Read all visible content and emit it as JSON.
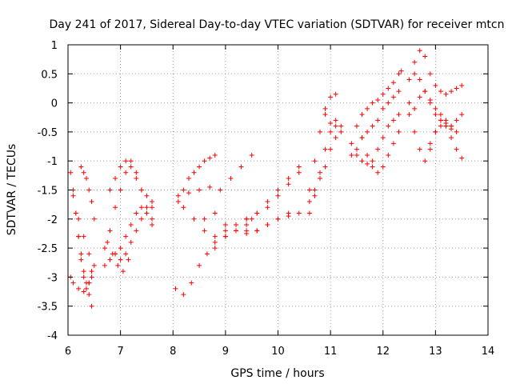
{
  "chart_data": {
    "type": "scatter",
    "title": "Day 241 of 2017, Sidereal Day-to-day VTEC variation (SDTVAR) for receiver mtcn",
    "xlabel": "GPS time / hours",
    "ylabel": "SDTVAR / TECUs",
    "xlim": [
      6,
      14
    ],
    "ylim": [
      -4,
      1
    ],
    "xticks": [
      "6",
      "7",
      "8",
      "9",
      "10",
      "11",
      "12",
      "13",
      "14"
    ],
    "yticks": [
      "-4",
      "-3.5",
      "-3",
      "-2.5",
      "-2",
      "-1.5",
      "-1",
      "-0.5",
      "0",
      "0.5",
      "1"
    ],
    "grid": true,
    "marker": "+",
    "color": "#ff0000",
    "series": [
      {
        "name": "s1",
        "x": [
          6.05,
          6.1,
          6.15,
          6.2,
          6.25,
          6.3,
          6.35,
          6.4,
          6.45
        ],
        "y": [
          -1.2,
          -1.6,
          -1.9,
          -2.3,
          -2.6,
          -2.9,
          -3.1,
          -3.3,
          -3.5
        ]
      },
      {
        "name": "s2",
        "x": [
          6.1,
          6.15,
          6.2,
          6.25,
          6.3,
          6.35,
          6.4,
          6.45
        ],
        "y": [
          -1.5,
          -1.9,
          -2.3,
          -2.7,
          -3.0,
          -3.2,
          -3.1,
          -2.9
        ]
      },
      {
        "name": "s3",
        "x": [
          6.25,
          6.3,
          6.35,
          6.4,
          6.45,
          6.5
        ],
        "y": [
          -1.1,
          -1.2,
          -1.3,
          -1.5,
          -1.7,
          -2.0
        ]
      },
      {
        "name": "s4",
        "x": [
          6.05,
          6.1,
          6.2,
          6.3,
          6.4,
          6.45
        ],
        "y": [
          -3.0,
          -3.1,
          -3.2,
          -3.25,
          -3.1,
          -3.0
        ]
      },
      {
        "name": "s5",
        "x": [
          6.2,
          6.3,
          6.4,
          6.5
        ],
        "y": [
          -2.0,
          -2.3,
          -2.6,
          -2.8
        ]
      },
      {
        "name": "s6",
        "x": [
          6.7,
          6.8,
          6.9,
          7.0,
          7.1,
          7.2,
          7.3,
          7.4,
          7.5,
          7.6
        ],
        "y": [
          -2.5,
          -2.2,
          -1.8,
          -1.5,
          -1.2,
          -1.0,
          -1.2,
          -1.5,
          -1.8,
          -2.0
        ]
      },
      {
        "name": "s7",
        "x": [
          6.7,
          6.8,
          6.9,
          7.0,
          7.1,
          7.2,
          7.3,
          7.4,
          7.5,
          7.6
        ],
        "y": [
          -2.8,
          -2.7,
          -2.6,
          -2.5,
          -2.3,
          -2.1,
          -1.9,
          -1.8,
          -1.9,
          -2.1
        ]
      },
      {
        "name": "s8",
        "x": [
          6.8,
          6.9,
          7.0,
          7.1,
          7.2,
          7.3,
          7.4,
          7.5,
          7.6
        ],
        "y": [
          -1.5,
          -1.3,
          -1.1,
          -1.0,
          -1.1,
          -1.3,
          -1.5,
          -1.6,
          -1.7
        ]
      },
      {
        "name": "s9",
        "x": [
          6.9,
          7.0,
          7.1,
          7.2,
          7.3,
          7.4,
          7.5,
          7.6
        ],
        "y": [
          -2.6,
          -2.7,
          -2.6,
          -2.4,
          -2.2,
          -2.0,
          -1.9,
          -1.8
        ]
      },
      {
        "name": "s10",
        "x": [
          6.75,
          6.85,
          6.95,
          7.05,
          7.15
        ],
        "y": [
          -2.4,
          -2.6,
          -2.8,
          -2.9,
          -2.7
        ]
      },
      {
        "name": "s11",
        "x": [
          8.05,
          8.2,
          8.35,
          8.5,
          8.65,
          8.8,
          9.0,
          9.2,
          9.4,
          9.5
        ],
        "y": [
          -3.2,
          -3.3,
          -3.1,
          -2.8,
          -2.6,
          -2.4,
          -2.2,
          -2.1,
          -2.0,
          -2.0
        ]
      },
      {
        "name": "s12",
        "x": [
          8.1,
          8.2,
          8.3,
          8.4,
          8.5,
          8.6,
          8.7,
          8.8
        ],
        "y": [
          -1.7,
          -1.5,
          -1.3,
          -1.2,
          -1.1,
          -1.0,
          -0.95,
          -0.9
        ]
      },
      {
        "name": "s13",
        "x": [
          8.1,
          8.3,
          8.5,
          8.7,
          8.9,
          9.1,
          9.3,
          9.5
        ],
        "y": [
          -1.6,
          -1.55,
          -1.5,
          -1.45,
          -1.5,
          -1.3,
          -1.1,
          -0.9
        ]
      },
      {
        "name": "s14",
        "x": [
          8.2,
          8.4,
          8.6,
          8.8,
          9.0,
          9.2,
          9.4,
          9.6,
          9.8,
          10.0,
          10.2,
          10.4
        ],
        "y": [
          -1.8,
          -2.0,
          -2.2,
          -2.3,
          -2.3,
          -2.2,
          -2.2,
          -2.2,
          -2.1,
          -2.0,
          -1.95,
          -1.9
        ]
      },
      {
        "name": "s15",
        "x": [
          8.6,
          8.8,
          9.0,
          9.2,
          9.4,
          9.6,
          9.8,
          10.0,
          10.2,
          10.4
        ],
        "y": [
          -2.0,
          -1.9,
          -2.1,
          -2.2,
          -2.1,
          -1.9,
          -1.7,
          -1.5,
          -1.3,
          -1.1
        ]
      },
      {
        "name": "s16",
        "x": [
          8.8,
          9.0,
          9.2,
          9.4,
          9.6,
          9.8,
          10.0,
          10.2,
          10.4
        ],
        "y": [
          -2.5,
          -2.3,
          -2.1,
          -2.0,
          -1.9,
          -1.8,
          -1.6,
          -1.4,
          -1.2
        ]
      },
      {
        "name": "s17",
        "x": [
          9.2,
          9.4,
          9.6,
          9.8,
          10.0,
          10.2
        ],
        "y": [
          -2.2,
          -2.25,
          -2.2,
          -2.1,
          -2.0,
          -1.9
        ]
      },
      {
        "name": "s18",
        "x": [
          10.6,
          10.7,
          10.8,
          10.9,
          11.0,
          11.1,
          11.2
        ],
        "y": [
          -1.9,
          -1.6,
          -1.2,
          -0.8,
          -0.5,
          -0.3,
          -0.4
        ]
      },
      {
        "name": "s19",
        "x": [
          10.6,
          10.7,
          10.8,
          10.9,
          11.0,
          11.1
        ],
        "y": [
          -1.5,
          -1.0,
          -0.5,
          -0.1,
          0.1,
          0.15
        ]
      },
      {
        "name": "s20",
        "x": [
          10.6,
          10.7,
          10.8,
          10.9,
          11.0,
          11.1
        ],
        "y": [
          -1.7,
          -1.5,
          -1.3,
          -1.1,
          -0.8,
          -0.6
        ]
      },
      {
        "name": "s21",
        "x": [
          10.9,
          11.0,
          11.1,
          11.2
        ],
        "y": [
          -0.2,
          -0.35,
          -0.4,
          -0.5
        ]
      },
      {
        "name": "s22",
        "x": [
          11.4,
          11.5,
          11.6,
          11.7,
          11.8,
          11.9,
          12.0,
          12.1,
          12.2,
          12.3,
          12.35
        ],
        "y": [
          -0.7,
          -0.4,
          -0.2,
          -0.1,
          0.0,
          0.05,
          0.15,
          0.25,
          0.35,
          0.5,
          0.55
        ]
      },
      {
        "name": "s23",
        "x": [
          11.4,
          11.5,
          11.6,
          11.7,
          11.8,
          11.9,
          12.0,
          12.1,
          12.2,
          12.3
        ],
        "y": [
          -0.9,
          -0.8,
          -0.6,
          -0.5,
          -0.4,
          -0.3,
          -0.1,
          0.0,
          0.1,
          0.2
        ]
      },
      {
        "name": "s24",
        "x": [
          11.5,
          11.6,
          11.7,
          11.8,
          11.9,
          12.0,
          12.1,
          12.2,
          12.3
        ],
        "y": [
          -0.9,
          -1.0,
          -1.05,
          -1.0,
          -0.8,
          -0.6,
          -0.4,
          -0.3,
          -0.2
        ]
      },
      {
        "name": "s25",
        "x": [
          11.6,
          11.7,
          11.8,
          11.9,
          12.0,
          12.1,
          12.2,
          12.3
        ],
        "y": [
          -0.6,
          -0.9,
          -1.1,
          -1.2,
          -1.1,
          -0.9,
          -0.7,
          -0.5
        ]
      },
      {
        "name": "s26",
        "x": [
          12.5,
          12.6,
          12.7,
          12.8,
          12.9,
          13.0,
          13.1,
          13.2,
          13.3,
          13.4,
          13.5
        ],
        "y": [
          0.4,
          0.7,
          0.9,
          0.8,
          0.5,
          0.3,
          0.2,
          0.15,
          0.2,
          0.25,
          0.3
        ]
      },
      {
        "name": "s27",
        "x": [
          12.5,
          12.6,
          12.7,
          12.8,
          12.9,
          13.0,
          13.1,
          13.2,
          13.3,
          13.4,
          13.5
        ],
        "y": [
          0.0,
          -0.1,
          0.1,
          0.2,
          0.05,
          -0.1,
          -0.2,
          -0.3,
          -0.4,
          -0.3,
          -0.2
        ]
      },
      {
        "name": "s28",
        "x": [
          12.5,
          12.6,
          12.7,
          12.8,
          12.9,
          13.0,
          13.1,
          13.2,
          13.3,
          13.4,
          13.5
        ],
        "y": [
          -0.2,
          -0.5,
          -0.8,
          -1.0,
          -0.8,
          -0.5,
          -0.3,
          -0.4,
          -0.6,
          -0.8,
          -0.95
        ]
      },
      {
        "name": "s29",
        "x": [
          12.6,
          12.7,
          12.8,
          12.9,
          13.0,
          13.1,
          13.2,
          13.3,
          13.4
        ],
        "y": [
          0.5,
          0.4,
          0.2,
          0.0,
          -0.2,
          -0.3,
          -0.4,
          -0.45,
          -0.5
        ]
      },
      {
        "name": "s30",
        "x": [
          12.9,
          13.0,
          13.1,
          13.2,
          13.3
        ],
        "y": [
          -0.7,
          -0.5,
          -0.4,
          -0.35,
          -0.4
        ]
      }
    ]
  }
}
